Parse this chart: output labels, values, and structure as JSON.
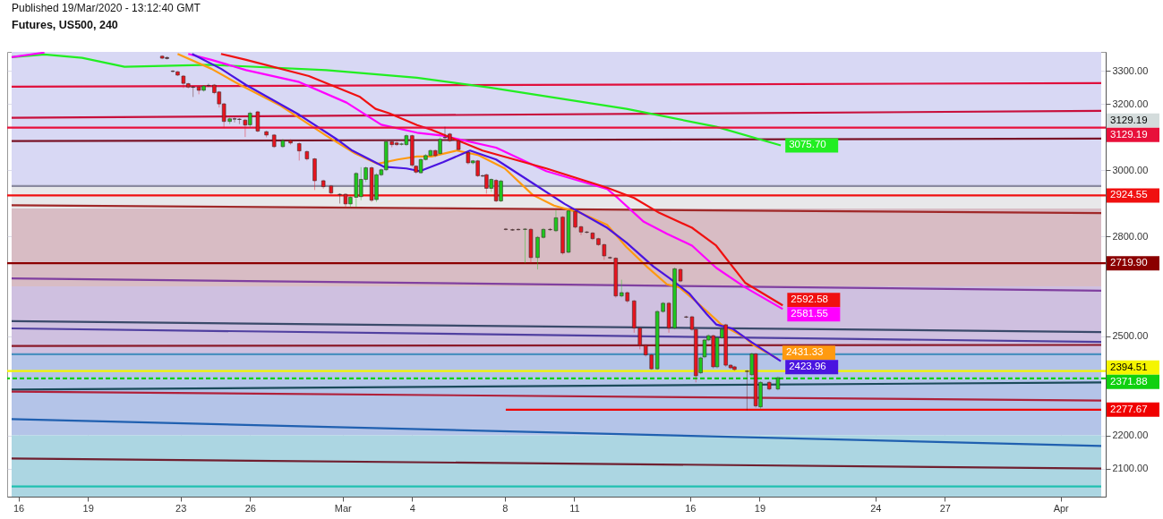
{
  "chart_data": {
    "type": "candlestick",
    "title": "Futures, US500, 240",
    "annotations": [
      "Published 19/Mar/2020 - 13:12:40 GMT",
      "3129.19"
    ],
    "x": [
      "2020-02-22T05:00",
      "2020-02-22T10:00",
      "2020-02-22T16:00",
      "2020-02-22T21:00",
      "2020-02-23T03:00",
      "2020-02-23T08:00",
      "2020-02-23T13:00",
      "2020-02-23T19:00",
      "2020-02-24T00:00",
      "2020-02-24T05:00",
      "2020-02-24T11:00",
      "2020-02-24T16:00",
      "2020-02-24T21:00",
      "2020-02-25T03:00",
      "2020-02-25T08:00",
      "2020-02-25T13:00",
      "2020-02-25T19:00",
      "2020-02-26T00:00",
      "2020-02-26T08:00",
      "2020-02-26T17:00",
      "2020-02-27T01:00",
      "2020-02-27T10:00",
      "2020-02-27T18:00",
      "2020-02-28T03:00",
      "2020-02-28T11:00",
      "2020-02-28T19:00",
      "2020-02-29T04:00",
      "2020-02-29T12:00",
      "2020-02-29T21:00",
      "2020-03-01T03:00",
      "2020-03-01T08:00",
      "2020-03-01T14:00",
      "2020-03-01T19:00",
      "2020-03-02T00:00",
      "2020-03-02T06:00",
      "2020-03-02T11:00",
      "2020-03-02T16:00",
      "2020-03-02T21:00",
      "2020-03-03T03:00",
      "2020-03-03T08:00",
      "2020-03-03T13:00",
      "2020-03-03T18:00",
      "2020-03-04T00:00",
      "2020-03-04T04:00",
      "2020-03-04T09:00",
      "2020-03-04T14:00",
      "2020-03-04T19:00",
      "2020-03-05T00:00",
      "2020-03-05T05:00",
      "2020-03-05T10:00",
      "2020-03-05T15:00",
      "2020-03-06T00:00",
      "2020-03-06T10:00",
      "2020-03-06T15:00",
      "2020-03-06T20:00",
      "2020-03-07T01:00",
      "2020-03-07T05:00",
      "2020-03-07T10:00",
      "2020-03-07T15:00",
      "2020-03-07T20:00",
      "2020-03-08T01:00",
      "2020-03-08T08:00",
      "2020-03-08T14:00",
      "2020-03-08T21:00",
      "2020-03-09T03:00",
      "2020-03-09T10:00",
      "2020-03-09T16:00",
      "2020-03-09T23:00",
      "2020-03-10T05:00",
      "2020-03-10T12:00",
      "2020-03-10T18:00",
      "2020-03-11T01:00",
      "2020-03-11T07:00",
      "2020-03-11T13:00",
      "2020-03-11T19:00",
      "2020-03-12T01:00",
      "2020-03-12T07:00",
      "2020-03-12T13:00",
      "2020-03-12T19:00",
      "2020-03-13T01:00",
      "2020-03-13T07:00",
      "2020-03-13T14:00",
      "2020-03-13T20:00",
      "2020-03-14T02:00",
      "2020-03-14T08:00",
      "2020-03-14T14:00",
      "2020-03-14T20:00",
      "2020-03-15T02:00",
      "2020-03-15T08:00",
      "2020-03-15T14:00",
      "2020-03-15T20:00",
      "2020-03-16T02:00",
      "2020-03-16T06:00",
      "2020-03-16T11:00",
      "2020-03-16T15:00",
      "2020-03-16T19:00",
      "2020-03-17T00:00",
      "2020-03-17T04:00",
      "2020-03-17T09:00",
      "2020-03-17T13:00",
      "2020-03-17T18:00",
      "2020-03-17T22:00",
      "2020-03-18T11:00",
      "2020-03-18T16:00",
      "2020-03-18T20:00",
      "2020-03-19T01:00",
      "2020-03-19T10:00",
      "2020-03-19T19:00"
    ],
    "ohlc": [
      [
        3345,
        3348,
        3336,
        3339
      ],
      [
        3341,
        3344,
        3335,
        3338
      ],
      [
        3300,
        3303,
        3296,
        3299
      ],
      [
        3298,
        3300,
        3285,
        3288
      ],
      [
        3285,
        3288,
        3249,
        3263
      ],
      [
        3262,
        3265,
        3248,
        3252
      ],
      [
        3252,
        3255,
        3222,
        3251
      ],
      [
        3252,
        3256,
        3230,
        3242
      ],
      [
        3242,
        3258,
        3238,
        3255
      ],
      [
        3256,
        3262,
        3252,
        3257
      ],
      [
        3258,
        3261,
        3230,
        3235
      ],
      [
        3237,
        3240,
        3190,
        3201
      ],
      [
        3201,
        3204,
        3128,
        3148
      ],
      [
        3148,
        3160,
        3140,
        3156
      ],
      [
        3156,
        3160,
        3145,
        3155
      ],
      [
        3155,
        3158,
        3140,
        3154
      ],
      [
        3152,
        3156,
        3101,
        3137
      ],
      [
        3138,
        3178,
        3130,
        3173
      ],
      [
        3177,
        3180,
        3115,
        3119
      ],
      [
        3117,
        3120,
        3100,
        3107
      ],
      [
        3107,
        3110,
        3068,
        3072
      ],
      [
        3072,
        3095,
        3068,
        3090
      ],
      [
        3090,
        3094,
        3078,
        3083
      ],
      [
        3081,
        3085,
        3030,
        3059
      ],
      [
        3057,
        3060,
        3030,
        3035
      ],
      [
        3035,
        3038,
        2941,
        2969
      ],
      [
        2969,
        2972,
        2945,
        2951
      ],
      [
        2953,
        2956,
        2928,
        2932
      ],
      [
        2928,
        2931,
        2900,
        2927
      ],
      [
        2928,
        2931,
        2885,
        2899
      ],
      [
        2899,
        2922,
        2890,
        2919
      ],
      [
        2919,
        2995,
        2890,
        2991
      ],
      [
        2921,
        3010,
        2910,
        2973
      ],
      [
        2973,
        3012,
        2965,
        3008
      ],
      [
        3008,
        3012,
        2905,
        2910
      ],
      [
        2912,
        2992,
        2905,
        2987
      ],
      [
        2987,
        3006,
        2982,
        3002
      ],
      [
        3002,
        3092,
        2998,
        3087
      ],
      [
        3087,
        3090,
        3070,
        3078
      ],
      [
        3083,
        3090,
        3074,
        3078
      ],
      [
        3079,
        3084,
        3075,
        3080
      ],
      [
        3078,
        3110,
        3074,
        3105
      ],
      [
        3105,
        3108,
        3010,
        3016
      ],
      [
        3013,
        3016,
        2990,
        2995
      ],
      [
        2993,
        3036,
        2990,
        3033
      ],
      [
        3033,
        3050,
        3030,
        3045
      ],
      [
        3045,
        3064,
        3042,
        3060
      ],
      [
        3060,
        3063,
        3040,
        3045
      ],
      [
        3051,
        3100,
        3048,
        3094
      ],
      [
        3099,
        3132,
        3095,
        3100
      ],
      [
        3110,
        3114,
        3086,
        3090
      ],
      [
        3090,
        3095,
        3060,
        3063
      ],
      [
        3054,
        3058,
        3018,
        3023
      ],
      [
        3023,
        3032,
        3018,
        3029
      ],
      [
        3029,
        3032,
        2980,
        2984
      ],
      [
        2984,
        2988,
        2980,
        2983
      ],
      [
        2987,
        2990,
        2930,
        2946
      ],
      [
        2946,
        2976,
        2935,
        2973
      ],
      [
        2970,
        2974,
        2904,
        2908
      ],
      [
        2908,
        2972,
        2904,
        2968
      ],
      [
        2823,
        2826,
        2819,
        2822
      ],
      [
        2821,
        2824,
        2818,
        2820
      ],
      [
        2822,
        2825,
        2819,
        2821
      ],
      [
        2822,
        2826,
        2720,
        2823
      ],
      [
        2822,
        2826,
        2720,
        2737
      ],
      [
        2737,
        2802,
        2701,
        2798
      ],
      [
        2798,
        2826,
        2794,
        2822
      ],
      [
        2822,
        2826,
        2818,
        2821
      ],
      [
        2818,
        2880,
        2814,
        2857
      ],
      [
        2859,
        2862,
        2746,
        2751
      ],
      [
        2753,
        2882,
        2750,
        2878
      ],
      [
        2876,
        2880,
        2825,
        2829
      ],
      [
        2830,
        2833,
        2805,
        2814
      ],
      [
        2814,
        2817,
        2810,
        2813
      ],
      [
        2811,
        2814,
        2790,
        2794
      ],
      [
        2794,
        2797,
        2772,
        2776
      ],
      [
        2776,
        2779,
        2730,
        2742
      ],
      [
        2737,
        2740,
        2733,
        2736
      ],
      [
        2735,
        2738,
        2616,
        2621
      ],
      [
        2621,
        2670,
        2617,
        2631
      ],
      [
        2631,
        2634,
        2600,
        2606
      ],
      [
        2606,
        2609,
        2510,
        2524
      ],
      [
        2524,
        2527,
        2460,
        2472
      ],
      [
        2472,
        2475,
        2438,
        2443
      ],
      [
        2443,
        2446,
        2398,
        2401
      ],
      [
        2401,
        2578,
        2398,
        2574
      ],
      [
        2574,
        2603,
        2570,
        2599
      ],
      [
        2599,
        2603,
        2510,
        2524
      ],
      [
        2524,
        2707,
        2520,
        2703
      ],
      [
        2701,
        2705,
        2662,
        2666
      ],
      [
        2558,
        2561,
        2554,
        2557
      ],
      [
        2558,
        2561,
        2516,
        2520
      ],
      [
        2520,
        2523,
        2360,
        2380
      ],
      [
        2389,
        2438,
        2385,
        2434
      ],
      [
        2437,
        2492,
        2433,
        2488
      ],
      [
        2488,
        2505,
        2484,
        2501
      ],
      [
        2501,
        2504,
        2402,
        2407
      ],
      [
        2407,
        2499,
        2402,
        2495
      ],
      [
        2495,
        2524,
        2491,
        2520
      ],
      [
        2534,
        2537,
        2407,
        2412
      ],
      [
        2412,
        2415,
        2400,
        2404
      ],
      [
        2407,
        2410,
        2395,
        2399
      ],
      [
        2394,
        2397,
        2275,
        2393
      ],
      [
        2383,
        2450,
        2379,
        2446
      ],
      [
        2446,
        2449,
        2284,
        2289
      ],
      [
        2286,
        2364,
        2280,
        2360
      ],
      [
        2360,
        2364,
        2336,
        2340
      ],
      [
        2340,
        2378,
        2336,
        2374
      ]
    ],
    "colors": [
      "#e8141e",
      "#5a2020",
      "#5a2020",
      "#e8141e",
      "#e8141e",
      "#e8141e",
      "#5a2020",
      "#e8141e",
      "#1ec81e",
      "#5a2020",
      "#e8141e",
      "#e8141e",
      "#e8141e",
      "#1ec81e",
      "#5a2020",
      "#5a2020",
      "#e8141e",
      "#1ec81e",
      "#e8141e",
      "#e8141e",
      "#e8141e",
      "#1ec81e",
      "#e8141e",
      "#e8141e",
      "#e8141e",
      "#e8141e",
      "#e8141e",
      "#e8141e",
      "#5a2020",
      "#e8141e",
      "#1ec81e",
      "#1ec81e",
      "#1ec81e",
      "#1ec81e",
      "#e8141e",
      "#1ec81e",
      "#1ec81e",
      "#1ec81e",
      "#e8141e",
      "#e8141e",
      "#1ec81e",
      "#1ec81e",
      "#e8141e",
      "#e8141e",
      "#1ec81e",
      "#1ec81e",
      "#1ec81e",
      "#e8141e",
      "#1ec81e",
      "#5a2020",
      "#e8141e",
      "#e8141e",
      "#e8141e",
      "#1ec81e",
      "#e8141e",
      "#5a2020",
      "#e8141e",
      "#1ec81e",
      "#e8141e",
      "#1ec81e",
      "#5a2020",
      "#5a2020",
      "#5a2020",
      "#1ec81e",
      "#e8141e",
      "#1ec81e",
      "#1ec81e",
      "#5a2020",
      "#1ec81e",
      "#e8141e",
      "#1ec81e",
      "#e8141e",
      "#e8141e",
      "#5a2020",
      "#e8141e",
      "#e8141e",
      "#e8141e",
      "#5a2020",
      "#e8141e",
      "#1ec81e",
      "#e8141e",
      "#e8141e",
      "#e8141e",
      "#e8141e",
      "#e8141e",
      "#1ec81e",
      "#1ec81e",
      "#e8141e",
      "#1ec81e",
      "#e8141e",
      "#5a2020",
      "#e8141e",
      "#e8141e",
      "#1ec81e",
      "#1ec81e",
      "#1ec81e",
      "#e8141e",
      "#1ec81e",
      "#1ec81e",
      "#e8141e",
      "#e8141e",
      "#e8141e",
      "#5a2020",
      "#1ec81e",
      "#e8141e",
      "#1ec81e",
      "#e8141e",
      "#1ec81e"
    ],
    "series": [
      {
        "type": "line",
        "color": "#e0103c",
        "x": [
          "2020-02-15T17:00",
          "2020-04-02T18:00"
        ],
        "values": [
          3253,
          3264
        ]
      },
      {
        "type": "line",
        "color": "#c8103c",
        "x": [
          "2020-02-15T17:00",
          "2020-04-02T18:00"
        ],
        "values": [
          3159,
          3180
        ]
      },
      {
        "type": "line",
        "color": "#7a1428",
        "x": [
          "2020-02-15T17:00",
          "2020-04-02T18:00"
        ],
        "values": [
          3089,
          3096
        ]
      },
      {
        "type": "line",
        "color": "#8a8aa0",
        "x": [
          "2020-02-15T17:00",
          "2020-04-02T18:00"
        ],
        "values": [
          2953,
          2953
        ]
      },
      {
        "type": "line",
        "color": "#a02828",
        "x": [
          "2020-02-15T17:00",
          "2020-04-02T18:00"
        ],
        "values": [
          2895,
          2871
        ]
      },
      {
        "type": "line",
        "color": "#8040a0",
        "x": [
          "2020-02-15T17:00",
          "2020-04-02T18:00"
        ],
        "values": [
          2674,
          2637
        ]
      },
      {
        "type": "line",
        "color": "#3a4a6a",
        "x": [
          "2020-02-15T17:00",
          "2020-04-02T18:00"
        ],
        "values": [
          2545,
          2512
        ]
      },
      {
        "type": "line",
        "color": "#5040a0",
        "x": [
          "2020-02-15T17:00",
          "2020-04-02T18:00"
        ],
        "values": [
          2523,
          2482
        ]
      },
      {
        "type": "line",
        "color": "#8b1a2a",
        "x": [
          "2020-02-15T17:00",
          "2020-04-02T18:00"
        ],
        "values": [
          2470,
          2473
        ]
      },
      {
        "type": "line",
        "color": "#4a90c0",
        "x": [
          "2020-02-15T17:00",
          "2020-04-02T18:00"
        ],
        "values": [
          2445,
          2445
        ]
      },
      {
        "type": "line",
        "color": "#1a4a5a",
        "x": [
          "2020-02-15T17:00",
          "2020-04-02T18:00"
        ],
        "values": [
          2338,
          2360
        ]
      },
      {
        "type": "line",
        "color": "#b0203a",
        "x": [
          "2020-02-15T17:00",
          "2020-04-02T18:00"
        ],
        "values": [
          2332,
          2305
        ]
      },
      {
        "type": "line",
        "color": "#2060b0",
        "x": [
          "2020-02-15T17:00",
          "2020-04-02T18:00"
        ],
        "values": [
          2249,
          2168
        ]
      },
      {
        "type": "line",
        "color": "#702030",
        "x": [
          "2020-02-15T17:00",
          "2020-04-02T18:00"
        ],
        "values": [
          2130,
          2100
        ]
      },
      {
        "type": "line",
        "color": "#20c0b0",
        "x": [
          "2020-02-15T17:00",
          "2020-04-02T18:00"
        ],
        "values": [
          2046,
          2046
        ]
      },
      {
        "type": "line",
        "color": "#f00000",
        "x": [
          "2020-03-08T01:00",
          "2020-04-02T18:00"
        ],
        "values": [
          2277.67,
          2277.67
        ],
        "value_labels": [
          null,
          "2277.67"
        ]
      },
      {
        "type": "line",
        "color": "#22ee22",
        "x": [
          "2020-02-15T17:00",
          "2020-02-17T03:00",
          "2020-02-18T18:00",
          "2020-02-20T14:00",
          "2020-02-24T08:00",
          "2020-02-29T07:00",
          "2020-03-04T05:00",
          "2020-03-07T07:00",
          "2020-03-13T06:00",
          "2020-03-17T03:00",
          "2020-03-19T22:00"
        ],
        "values": [
          3342,
          3350,
          3340,
          3313,
          3319,
          3303,
          3280,
          3251,
          3186,
          3132,
          3075.7
        ],
        "value_labels": [
          null,
          null,
          null,
          null,
          null,
          null,
          null,
          null,
          null,
          null,
          "3075.70"
        ]
      },
      {
        "type": "line",
        "color": "#ff00ff",
        "x": [
          "2020-02-15T17:00",
          "2020-02-17T03:00",
          "2020-02-19T00:00",
          "2020-02-23T08:00",
          "2020-02-24T08:00",
          "2020-02-25T20:00",
          "2020-02-28T03:00",
          "2020-03-01T04:00",
          "2020-03-02T16:00",
          "2020-03-04T05:00",
          "2020-03-05T08:00",
          "2020-03-07T15:00",
          "2020-03-09T19:00",
          "2020-03-12T10:00",
          "2020-03-12T21:00",
          "2020-03-14T00:00",
          "2020-03-15T00:00",
          "2020-03-16T02:00",
          "2020-03-17T03:00",
          "2020-03-18T09:00",
          "2020-03-20T00:00"
        ],
        "values": [
          3342,
          3356,
          null,
          3352,
          3334,
          3303,
          3267,
          3205,
          3138,
          3114,
          3105,
          3069,
          2998,
          2944,
          2917,
          2845,
          2809,
          2773,
          2706,
          2647,
          2581.55
        ],
        "value_labels": [
          null,
          null,
          null,
          null,
          null,
          null,
          null,
          null,
          null,
          null,
          null,
          null,
          null,
          null,
          null,
          null,
          null,
          null,
          null,
          null,
          "2581.55"
        ]
      },
      {
        "type": "line",
        "color": "#f01010",
        "x": [
          "2020-02-24T18:00",
          "2020-02-25T20:00",
          "2020-02-28T13:00",
          "2020-03-01T18:00",
          "2020-03-02T10:00",
          "2020-03-03T00:00",
          "2020-03-04T05:00",
          "2020-03-04T20:00",
          "2020-03-07T01:00",
          "2020-03-09T19:00",
          "2020-03-12T10:00",
          "2020-03-13T14:00",
          "2020-03-14T16:00",
          "2020-03-16T02:00",
          "2020-03-17T03:00",
          "2020-03-18T09:00",
          "2020-03-20T00:00"
        ],
        "values": [
          3352,
          3334,
          3285,
          3222,
          3186,
          3173,
          3137,
          3123,
          3060,
          3006,
          2948,
          2917,
          2872,
          2827,
          2773,
          2661,
          2592.58
        ],
        "value_labels": [
          null,
          null,
          null,
          null,
          null,
          null,
          null,
          null,
          null,
          null,
          null,
          null,
          null,
          null,
          null,
          null,
          "2592.58"
        ]
      },
      {
        "type": "line",
        "color": "#ff9a10",
        "x": [
          "2020-02-22T21:00",
          "2020-02-24T08:00",
          "2020-02-25T14:00",
          "2020-02-27T08:00",
          "2020-02-29T07:00",
          "2020-03-01T13:00",
          "2020-03-02T12:00",
          "2020-03-03T09:00",
          "2020-03-04T05:00",
          "2020-03-04T20:00",
          "2020-03-05T22:00",
          "2020-03-06T20:00",
          "2020-03-08T00:00",
          "2020-03-09T05:00",
          "2020-03-10T03:00",
          "2020-03-11T06:00",
          "2020-03-12T10:00",
          "2020-03-13T06:00",
          "2020-03-14T03:00",
          "2020-03-15T00:00",
          "2020-03-15T13:00",
          "2020-03-16T07:00",
          "2020-03-17T03:00",
          "2020-03-17T08:00",
          "2020-03-18T09:00",
          "2020-03-18T18:00",
          "2020-03-19T19:00"
        ],
        "values": [
          3352,
          3307,
          3258,
          3195,
          3105,
          3051,
          3020,
          3033,
          3042,
          3042,
          3060,
          3047,
          3006,
          2926,
          2894,
          2872,
          2836,
          2769,
          2710,
          2656,
          2647,
          2602,
          2549,
          2535,
          2495,
          2472,
          2431.33
        ],
        "value_labels": [
          null,
          null,
          null,
          null,
          null,
          null,
          null,
          null,
          null,
          null,
          null,
          null,
          null,
          null,
          null,
          null,
          null,
          null,
          null,
          null,
          null,
          null,
          null,
          null,
          null,
          null,
          "2431.33"
        ]
      },
      {
        "type": "line",
        "color": "#4a14e0",
        "x": [
          "2020-02-23T12:00",
          "2020-02-24T18:00",
          "2020-02-25T20:00",
          "2020-02-28T03:00",
          "2020-02-29T17:00",
          "2020-03-01T10:00",
          "2020-03-02T19:00",
          "2020-03-03T18:00",
          "2020-03-04T08:00",
          "2020-03-05T08:00",
          "2020-03-06T12:00",
          "2020-03-07T15:00",
          "2020-03-09T00:00",
          "2020-03-10T14:00",
          "2020-03-12T10:00",
          "2020-03-13T06:00",
          "2020-03-14T10:00",
          "2020-03-15T03:00",
          "2020-03-15T23:00",
          "2020-03-16T17:00",
          "2020-03-17T03:00",
          "2020-03-17T20:00",
          "2020-03-18T16:00",
          "2020-03-19T22:00"
        ],
        "values": [
          3352,
          3307,
          3258,
          3168,
          3096,
          3060,
          3011,
          3006,
          2998,
          3025,
          3060,
          3033,
          2971,
          2899,
          2827,
          2782,
          2710,
          2674,
          2629,
          2567,
          2535,
          2522,
          2481,
          2423.96
        ],
        "value_labels": [
          null,
          null,
          null,
          null,
          null,
          null,
          null,
          null,
          null,
          null,
          null,
          null,
          null,
          null,
          null,
          null,
          null,
          null,
          null,
          null,
          null,
          null,
          null,
          "2423.96"
        ]
      }
    ],
    "ref_lines": [
      {
        "axis": "y",
        "value": 3129.19,
        "label": "3129.19",
        "color": "#e8103a"
      },
      {
        "axis": "y",
        "value": 2924.55,
        "label": "2924.55",
        "color": "#f01010"
      },
      {
        "axis": "y",
        "value": 2719.9,
        "label": "2719.90",
        "color": "#8b0000"
      },
      {
        "axis": "y",
        "value": 2394.51,
        "label": "2394.51",
        "color": "#f5f500"
      },
      {
        "axis": "y",
        "value": 2371.88,
        "label": "2371.88",
        "color": "#10d010",
        "line_style": "dashed"
      }
    ],
    "bands": [
      {
        "axis": "y",
        "from": 2953,
        "to": 3358,
        "color": "#d8d8f4"
      },
      {
        "axis": "y",
        "from": 2885,
        "to": 2953,
        "color": "#e8e8ea"
      },
      {
        "axis": "y",
        "from": 2650,
        "to": 2885,
        "color": "#d8bcc4"
      },
      {
        "axis": "y",
        "from": 2445,
        "to": 2650,
        "color": "#cfc0e0"
      },
      {
        "axis": "y",
        "from": 2200,
        "to": 2445,
        "color": "#b4c4e8"
      },
      {
        "axis": "y",
        "from": 2015,
        "to": 2200,
        "color": "#acd6e2"
      }
    ],
    "xlim": [
      "2020-02-15T17:00",
      "2020-04-02T18:00"
    ],
    "ylim": [
      2015,
      3358
    ],
    "xticks": [
      {
        "value": "2020-02-16",
        "label": "16"
      },
      {
        "value": "2020-02-19",
        "label": "19"
      },
      {
        "value": "2020-02-23",
        "label": "23"
      },
      {
        "value": "2020-02-26",
        "label": "26"
      },
      {
        "value": "2020-03-01",
        "label": "Mar"
      },
      {
        "value": "2020-03-04",
        "label": "4"
      },
      {
        "value": "2020-03-08",
        "label": "8"
      },
      {
        "value": "2020-03-11",
        "label": "11"
      },
      {
        "value": "2020-03-16",
        "label": "16"
      },
      {
        "value": "2020-03-19",
        "label": "19"
      },
      {
        "value": "2020-03-24",
        "label": "24"
      },
      {
        "value": "2020-03-27",
        "label": "27"
      },
      {
        "value": "2020-04-01",
        "label": "Apr"
      }
    ],
    "yticks": [
      {
        "value": 2100,
        "label": "2100.00"
      },
      {
        "value": 2200,
        "label": "2200.00"
      },
      {
        "value": 2500,
        "label": "2500.00"
      },
      {
        "value": 2800,
        "label": "2800.00"
      },
      {
        "value": 3000,
        "label": "3000.00"
      },
      {
        "value": 3200,
        "label": "3200.00"
      },
      {
        "value": 3300,
        "label": "3300.00"
      }
    ],
    "grid": true
  }
}
